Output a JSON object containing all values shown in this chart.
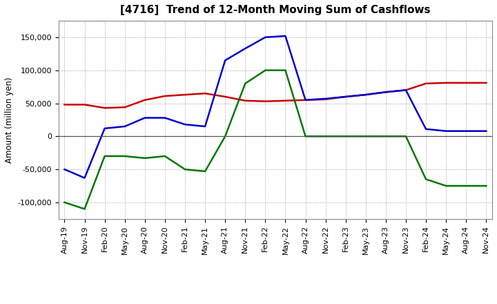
{
  "title": "[4716]  Trend of 12-Month Moving Sum of Cashflows",
  "ylabel": "Amount (million yen)",
  "x_labels": [
    "Aug-19",
    "Nov-19",
    "Feb-20",
    "May-20",
    "Aug-20",
    "Nov-20",
    "Feb-21",
    "May-21",
    "Aug-21",
    "Nov-21",
    "Feb-22",
    "May-22",
    "Aug-22",
    "Nov-22",
    "Feb-23",
    "May-23",
    "Aug-23",
    "Nov-23",
    "Feb-24",
    "May-24",
    "Aug-24",
    "Nov-24"
  ],
  "operating": [
    48000,
    48000,
    43000,
    44000,
    55000,
    61000,
    63000,
    65000,
    60000,
    54000,
    53000,
    54000,
    55000,
    56000,
    60000,
    63000,
    67000,
    70000,
    80000,
    81000,
    81000,
    81000
  ],
  "investing": [
    -100000,
    -110000,
    -30000,
    -30000,
    -33000,
    -30000,
    -50000,
    -53000,
    0,
    80000,
    100000,
    100000,
    0,
    0,
    0,
    0,
    0,
    0,
    -65000,
    -75000,
    -75000,
    -75000
  ],
  "free": [
    -50000,
    -63000,
    12000,
    15000,
    28000,
    28000,
    18000,
    15000,
    115000,
    133000,
    150000,
    152000,
    55000,
    57000,
    60000,
    63000,
    67000,
    70000,
    11000,
    8000,
    8000,
    8000
  ],
  "operating_color": "#cc0000",
  "investing_color": "#007700",
  "free_color": "#0000cc",
  "bg_color": "#ffffff",
  "plot_bg_color": "#ffffff",
  "grid_color": "#999999",
  "ylim": [
    -125000,
    175000
  ],
  "yticks": [
    -100000,
    -50000,
    0,
    50000,
    100000,
    150000
  ],
  "title_fontsize": 11,
  "axis_fontsize": 8,
  "ylabel_fontsize": 8.5,
  "legend_fontsize": 8.5,
  "linewidth": 1.8
}
